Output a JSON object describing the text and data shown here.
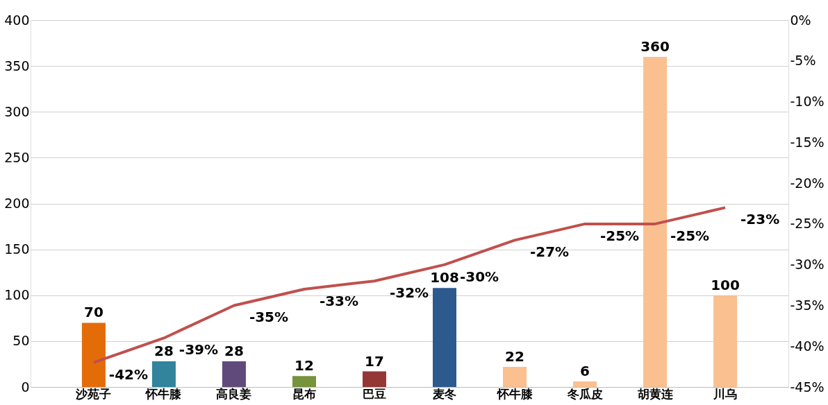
{
  "chart_data": {
    "type": "bar",
    "categories": [
      "沙苑子",
      "怀牛膝",
      "高良姜",
      "昆布",
      "巴豆",
      "麦冬",
      "怀牛膝",
      "冬瓜皮",
      "胡黄连",
      "川乌"
    ],
    "series": [
      {
        "colors": [
          "#e36c09",
          "#31849b",
          "#604a7b",
          "#77933c",
          "#953735",
          "#2c5a8f",
          "#fac090",
          "#fac090",
          "#fac090",
          "#fac090"
        ],
        "values": [
          70,
          28,
          28,
          12,
          17,
          108,
          22,
          6,
          360,
          100
        ]
      },
      {
        "type": "line",
        "axis": "y2",
        "color": "#c0504d",
        "values": [
          -42,
          -39,
          -35,
          -33,
          -32,
          -30,
          -27,
          -25,
          -25,
          -23
        ],
        "value_labels": [
          "-42%",
          "-39%",
          "-35%",
          "-33%",
          "-32%",
          "-30%",
          "-27%",
          "-25%",
          "-25%",
          "-23%"
        ]
      }
    ],
    "ylim": [
      0,
      400
    ],
    "yticks": [
      0,
      50,
      100,
      150,
      200,
      250,
      300,
      350,
      400
    ],
    "y2lim": [
      -45,
      0
    ],
    "y2ticks": [
      {
        "value": 0,
        "label": "0%"
      },
      {
        "value": -5,
        "label": "-5%"
      },
      {
        "value": -10,
        "label": "-10%"
      },
      {
        "value": -15,
        "label": "-15%"
      },
      {
        "value": -20,
        "label": "-20%"
      },
      {
        "value": -25,
        "label": "-25%"
      },
      {
        "value": -30,
        "label": "-30%"
      },
      {
        "value": -35,
        "label": "-35%"
      },
      {
        "value": -40,
        "label": "-40%"
      },
      {
        "value": -45,
        "label": "-45%"
      }
    ],
    "data_labels": true,
    "grid": "y"
  }
}
